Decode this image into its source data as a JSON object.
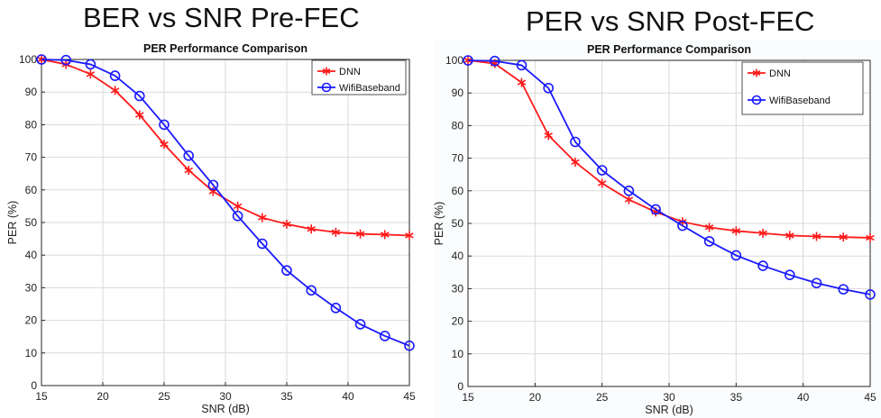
{
  "headings": {
    "left": "BER vs SNR Pre-FEC",
    "right": "PER vs SNR Post-FEC"
  },
  "colors": {
    "dnn": "#ff1a1a",
    "wifi": "#1a1aff",
    "grid": "#d9d9d9",
    "axis": "#262626"
  },
  "chart_data": [
    {
      "type": "line",
      "title": "PER Performance Comparison",
      "xlabel": "SNR (dB)",
      "ylabel": "PER (%)",
      "xlim": [
        15,
        45
      ],
      "ylim": [
        0,
        100
      ],
      "xticks": [
        "15",
        "20",
        "25",
        "30",
        "35",
        "40",
        "45"
      ],
      "yticks": [
        "0",
        "10",
        "20",
        "30",
        "40",
        "50",
        "60",
        "70",
        "80",
        "90",
        "100"
      ],
      "grid": true,
      "legend_position": "top-right",
      "x": [
        15,
        17,
        19,
        21,
        23,
        25,
        27,
        29,
        31,
        33,
        35,
        37,
        39,
        41,
        43,
        45
      ],
      "series": [
        {
          "name": "DNN",
          "marker": "asterisk",
          "color": "#ff1a1a",
          "values": [
            100,
            98.5,
            95.5,
            90.5,
            83,
            74,
            66,
            59.5,
            55,
            51.5,
            49.5,
            48,
            47,
            46.5,
            46.3,
            46
          ]
        },
        {
          "name": "WifiBaseband",
          "marker": "circle",
          "color": "#1a1aff",
          "values": [
            100,
            99.8,
            98.5,
            95,
            88.8,
            80,
            70.5,
            61.5,
            52,
            43.5,
            35.3,
            29.2,
            23.8,
            18.8,
            15.2,
            12.2
          ]
        }
      ]
    },
    {
      "type": "line",
      "title": "PER Performance Comparison",
      "xlabel": "SNR (dB)",
      "ylabel": "PER (%)",
      "xlim": [
        15,
        45
      ],
      "ylim": [
        0,
        100
      ],
      "xticks": [
        "15",
        "20",
        "25",
        "30",
        "35",
        "40",
        "45"
      ],
      "yticks": [
        "0",
        "10",
        "20",
        "30",
        "40",
        "50",
        "60",
        "70",
        "80",
        "90",
        "100"
      ],
      "grid": true,
      "legend_position": "top-right",
      "x": [
        15,
        17,
        19,
        21,
        23,
        25,
        27,
        29,
        31,
        33,
        35,
        37,
        39,
        41,
        43,
        45
      ],
      "series": [
        {
          "name": "DNN",
          "marker": "asterisk",
          "color": "#ff1a1a",
          "values": [
            100,
            99,
            93.2,
            77,
            68.8,
            62.3,
            57.3,
            53.5,
            50.5,
            48.8,
            47.7,
            47,
            46.3,
            46,
            45.8,
            45.6
          ]
        },
        {
          "name": "WifiBaseband",
          "marker": "circle",
          "color": "#1a1aff",
          "values": [
            100,
            99.8,
            98.5,
            91.5,
            75,
            66.3,
            60,
            54.3,
            49.3,
            44.5,
            40.2,
            37,
            34.2,
            31.7,
            29.8,
            28.2
          ]
        }
      ]
    }
  ]
}
